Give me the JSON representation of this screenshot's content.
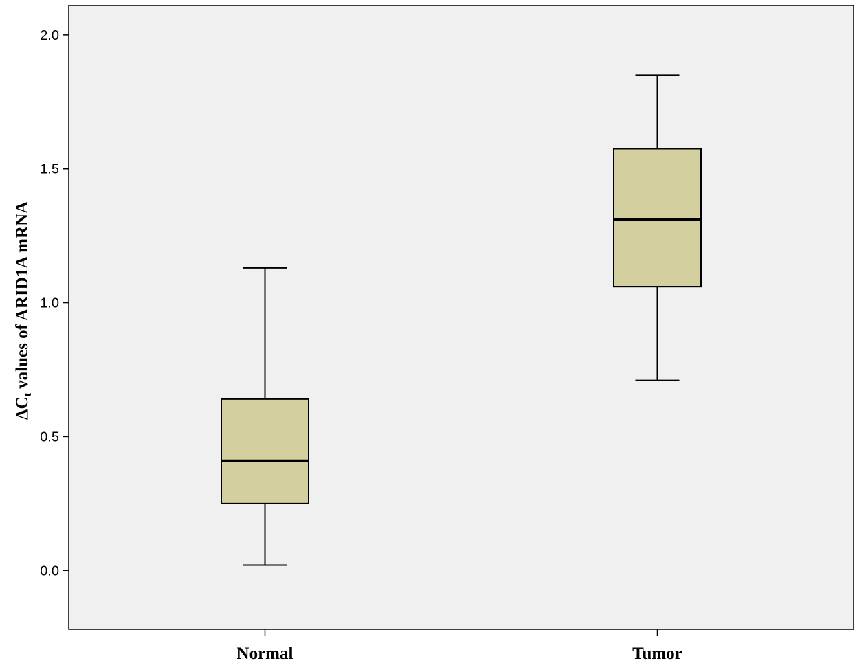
{
  "chart_data": {
    "type": "box",
    "ylabel": {
      "prefix": "ΔC",
      "subscript": "t",
      "suffix": " values of ARID1A mRNA"
    },
    "xlabel": "",
    "ylim": [
      -0.22,
      2.11
    ],
    "yticks": [
      "0.0",
      "0.5",
      "1.0",
      "1.5",
      "2.0"
    ],
    "ytick_values": [
      0.0,
      0.5,
      1.0,
      1.5,
      2.0
    ],
    "categories": [
      "Normal",
      "Tumor"
    ],
    "boxes": [
      {
        "name": "Normal",
        "whisker_low": 0.02,
        "q1": 0.25,
        "median": 0.41,
        "q3": 0.64,
        "whisker_high": 1.13
      },
      {
        "name": "Tumor",
        "whisker_low": 0.71,
        "q1": 1.06,
        "median": 1.31,
        "q3": 1.575,
        "whisker_high": 1.85
      }
    ],
    "grid": false,
    "colors": {
      "plot_background": "#f0f0f0",
      "box_fill": "#d3cf9f",
      "line": "#000000"
    }
  }
}
